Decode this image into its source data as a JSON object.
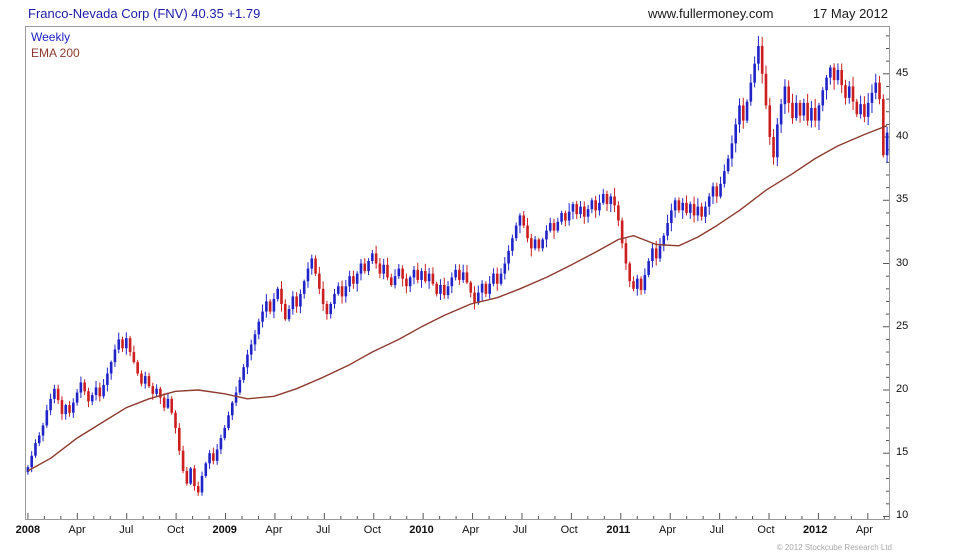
{
  "header": {
    "title": "Franco-Nevada Corp (FNV) 40.35 +1.79",
    "website": "www.fullermoney.com",
    "date": "17 May 2012"
  },
  "legend": {
    "series1": "Weekly",
    "series2": "EMA 200"
  },
  "footer": {
    "copyright": "© 2012 Stockcube Research Ltd"
  },
  "colors": {
    "up": "#2024c8",
    "down": "#cc1e1e",
    "ema": "#8c3b2e",
    "title": "#1c1ca8",
    "axis_text": "#111111",
    "border": "#9a9a9a"
  },
  "chart_data": {
    "type": "candlestick",
    "cadence": "weekly",
    "title": "Franco-Nevada Corp (FNV)",
    "last_price": 40.35,
    "weekly_change": "+1.79",
    "legend": [
      "Weekly",
      "EMA 200"
    ],
    "ylim": [
      9.8,
      48.7
    ],
    "yticks": [
      10,
      15,
      20,
      25,
      30,
      35,
      40,
      45
    ],
    "xticks": [
      {
        "label": "2008",
        "week": 0,
        "bold": true
      },
      {
        "label": "Apr",
        "week": 13
      },
      {
        "label": "Jul",
        "week": 26
      },
      {
        "label": "Oct",
        "week": 39
      },
      {
        "label": "2009",
        "week": 52,
        "bold": true
      },
      {
        "label": "Apr",
        "week": 65
      },
      {
        "label": "Jul",
        "week": 78
      },
      {
        "label": "Oct",
        "week": 91
      },
      {
        "label": "2010",
        "week": 104,
        "bold": true
      },
      {
        "label": "Apr",
        "week": 117
      },
      {
        "label": "Jul",
        "week": 130
      },
      {
        "label": "Oct",
        "week": 143
      },
      {
        "label": "2011",
        "week": 156,
        "bold": true
      },
      {
        "label": "Apr",
        "week": 169
      },
      {
        "label": "Jul",
        "week": 182
      },
      {
        "label": "Oct",
        "week": 195
      },
      {
        "label": "2012",
        "week": 208,
        "bold": true
      },
      {
        "label": "Apr",
        "week": 221
      }
    ],
    "first_open": 13.5,
    "weekly_closes": [
      13.9,
      14.8,
      15.8,
      16.4,
      17.2,
      18.4,
      19.3,
      20.1,
      19.2,
      18.1,
      18.8,
      18.2,
      19.0,
      19.8,
      20.6,
      19.9,
      19.1,
      19.6,
      20.2,
      19.5,
      20.4,
      21.3,
      22.2,
      23.2,
      24.0,
      23.3,
      24.1,
      23.0,
      22.2,
      21.3,
      20.5,
      21.1,
      20.3,
      19.7,
      20.1,
      19.4,
      18.6,
      19.3,
      18.2,
      17.0,
      15.2,
      13.6,
      12.6,
      13.8,
      12.4,
      11.9,
      13.2,
      14.2,
      15.0,
      14.4,
      15.3,
      16.2,
      17.0,
      18.0,
      19.0,
      19.8,
      20.8,
      21.8,
      22.8,
      23.6,
      24.4,
      25.4,
      26.2,
      27.0,
      26.2,
      27.2,
      28.0,
      26.8,
      25.6,
      26.4,
      27.4,
      26.6,
      27.6,
      28.6,
      29.6,
      30.4,
      29.2,
      28.0,
      26.8,
      26.0,
      26.8,
      27.6,
      28.2,
      27.4,
      28.2,
      29.0,
      28.4,
      29.2,
      30.0,
      29.4,
      30.2,
      30.8,
      30.0,
      29.2,
      29.9,
      28.9,
      28.3,
      29.0,
      29.6,
      28.8,
      28.2,
      28.9,
      29.5,
      28.7,
      29.4,
      28.6,
      29.2,
      28.4,
      27.6,
      28.3,
      27.5,
      28.2,
      28.9,
      29.5,
      28.7,
      29.3,
      28.5,
      27.7,
      26.9,
      27.7,
      28.4,
      27.6,
      28.4,
      29.2,
      28.4,
      29.2,
      30.0,
      31.0,
      32.0,
      33.0,
      33.8,
      33.0,
      32.0,
      31.2,
      31.9,
      31.2,
      31.9,
      32.6,
      33.2,
      32.6,
      33.3,
      34.0,
      33.4,
      34.1,
      34.7,
      33.9,
      34.5,
      33.7,
      34.3,
      35.0,
      34.2,
      34.8,
      35.5,
      34.7,
      35.3,
      34.6,
      33.4,
      31.6,
      30.0,
      28.6,
      28.0,
      28.8,
      27.9,
      29.1,
      30.2,
      31.2,
      30.4,
      31.4,
      32.2,
      33.2,
      34.2,
      35.0,
      34.2,
      34.8,
      34.0,
      34.7,
      33.8,
      34.5,
      33.7,
      34.5,
      35.3,
      36.1,
      35.3,
      36.3,
      37.3,
      38.3,
      39.5,
      41.0,
      42.5,
      41.3,
      42.8,
      44.3,
      45.8,
      47.2,
      45.0,
      42.5,
      40.0,
      38.4,
      41.0,
      42.6,
      44.0,
      42.7,
      41.5,
      42.7,
      41.7,
      42.7,
      41.3,
      42.3,
      41.3,
      42.5,
      43.7,
      44.7,
      45.5,
      44.5,
      45.3,
      44.1,
      43.1,
      44.0,
      42.8,
      41.8,
      42.6,
      41.6,
      42.7,
      43.5,
      44.3,
      43.0,
      38.56,
      40.35
    ],
    "ema_anchors": [
      [
        0,
        13.6
      ],
      [
        6,
        14.6
      ],
      [
        13,
        16.2
      ],
      [
        20,
        17.5
      ],
      [
        26,
        18.6
      ],
      [
        32,
        19.3
      ],
      [
        39,
        19.9
      ],
      [
        45,
        20.0
      ],
      [
        52,
        19.7
      ],
      [
        58,
        19.3
      ],
      [
        65,
        19.5
      ],
      [
        71,
        20.1
      ],
      [
        78,
        21.0
      ],
      [
        85,
        22.0
      ],
      [
        91,
        23.0
      ],
      [
        98,
        24.0
      ],
      [
        104,
        25.0
      ],
      [
        110,
        25.9
      ],
      [
        117,
        26.8
      ],
      [
        124,
        27.3
      ],
      [
        130,
        28.0
      ],
      [
        137,
        28.9
      ],
      [
        143,
        29.8
      ],
      [
        150,
        30.9
      ],
      [
        156,
        31.9
      ],
      [
        160,
        32.2
      ],
      [
        166,
        31.5
      ],
      [
        172,
        31.4
      ],
      [
        177,
        32.1
      ],
      [
        182,
        33.0
      ],
      [
        188,
        34.2
      ],
      [
        195,
        35.8
      ],
      [
        202,
        37.1
      ],
      [
        208,
        38.3
      ],
      [
        214,
        39.3
      ],
      [
        221,
        40.2
      ],
      [
        227,
        40.9
      ]
    ]
  }
}
